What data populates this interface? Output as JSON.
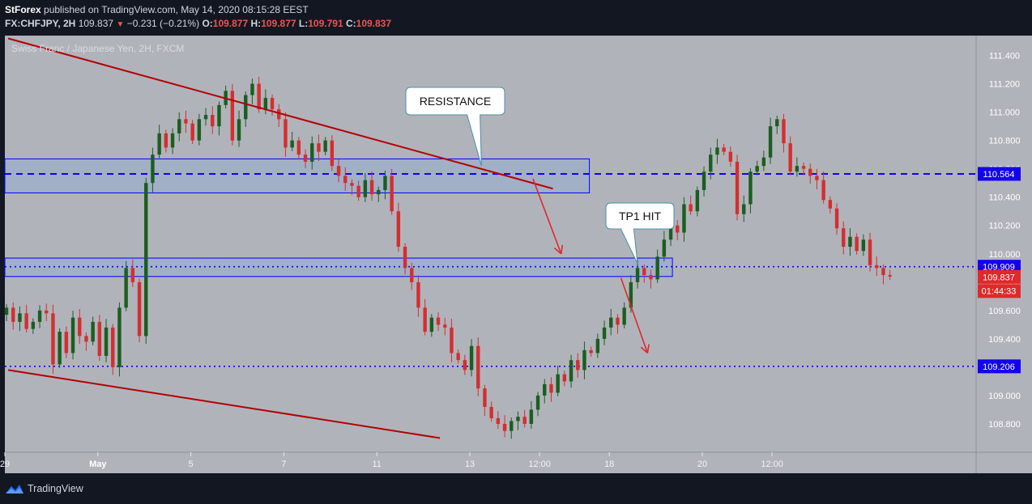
{
  "header": {
    "publisher": "StForex",
    "published_text": "published on TradingView.com, May 14, 2020 08:15:28 EEST",
    "symbol": "FX:CHFJPY, 2H",
    "last": "109.837",
    "change": "−0.231 (−0.21%)",
    "o_label": "O:",
    "o_value": "109.877",
    "h_label": "H:",
    "h_value": "109.877",
    "l_label": "L:",
    "l_value": "109.791",
    "c_label": "C:",
    "c_value": "109.837"
  },
  "footer": {
    "brand": "TradingView"
  },
  "chart_data": {
    "type": "candlestick",
    "title": "Swiss Franc / Japanese Yen, 2H, FXCM",
    "y_range": [
      108.6,
      111.54
    ],
    "y_ticks": [
      "111.400",
      "111.200",
      "111.000",
      "110.800",
      "110.600",
      "110.400",
      "110.200",
      "110.000",
      "109.800",
      "109.600",
      "109.400",
      "109.200",
      "109.000",
      "108.800"
    ],
    "x_range": [
      0,
      288
    ],
    "x_ticks": [
      {
        "x": 0,
        "label": "29"
      },
      {
        "x": 28,
        "label": "May"
      },
      {
        "x": 56,
        "label": "5"
      },
      {
        "x": 84,
        "label": "7"
      },
      {
        "x": 112,
        "label": "11"
      },
      {
        "x": 140,
        "label": "13"
      },
      {
        "x": 161,
        "label": "12:00"
      },
      {
        "x": 182,
        "label": "18"
      },
      {
        "x": 210,
        "label": "20"
      },
      {
        "x": 231,
        "label": "12:00"
      }
    ],
    "closes": [
      109.62,
      109.52,
      109.58,
      109.47,
      109.52,
      109.6,
      109.58,
      109.22,
      109.45,
      109.3,
      109.55,
      109.42,
      109.38,
      109.52,
      109.28,
      109.48,
      109.2,
      109.62,
      109.9,
      109.8,
      109.42,
      110.5,
      110.7,
      110.85,
      110.75,
      110.85,
      110.95,
      110.92,
      110.8,
      110.95,
      110.98,
      110.9,
      111.05,
      111.15,
      110.8,
      110.95,
      111.12,
      111.2,
      111.02,
      111.1,
      111.02,
      110.95,
      110.75,
      110.8,
      110.7,
      110.65,
      110.78,
      110.72,
      110.8,
      110.62,
      110.55,
      110.5,
      110.48,
      110.4,
      110.52,
      110.42,
      110.45,
      110.55,
      110.3,
      110.05,
      109.9,
      109.8,
      109.62,
      109.45,
      109.55,
      109.5,
      109.48,
      109.3,
      109.25,
      109.18,
      109.35,
      109.05,
      108.92,
      108.84,
      108.8,
      108.75,
      108.82,
      108.85,
      108.8,
      108.9,
      109.0,
      109.08,
      109.02,
      109.15,
      109.1,
      109.25,
      109.18,
      109.32,
      109.3,
      109.4,
      109.48,
      109.55,
      109.5,
      109.62,
      109.8,
      109.9,
      109.85,
      109.82,
      109.98,
      110.1,
      110.2,
      110.15,
      110.35,
      110.3,
      110.45,
      110.58,
      110.7,
      110.75,
      110.72,
      110.65,
      110.28,
      110.35,
      110.58,
      110.62,
      110.68,
      110.9,
      110.95,
      110.78,
      110.58,
      110.62,
      110.6,
      110.55,
      110.52,
      110.38,
      110.32,
      110.18,
      110.05,
      110.12,
      110.02,
      110.1,
      109.92,
      109.9,
      109.85,
      109.84
    ],
    "levels": [
      {
        "price": 110.564,
        "label": "110.564",
        "style": "dashed",
        "color": "#1200ee"
      },
      {
        "price": 109.909,
        "label": "109.909",
        "style": "dotted",
        "color": "#1200ee"
      },
      {
        "price": 109.206,
        "label": "109.206",
        "style": "dotted",
        "color": "#1200ee"
      }
    ],
    "last_price": {
      "price": 109.837,
      "label": "109.837",
      "countdown": "01:44:33",
      "color": "#e0292a"
    },
    "annotations": [
      {
        "type": "callout",
        "text": "RESISTANCE"
      },
      {
        "type": "callout",
        "text": "TP1 HIT"
      }
    ],
    "colors": {
      "up": "#1b5e20",
      "down": "#d32f2f",
      "background": "#b1b3bb",
      "trendline": "#b40000",
      "zone_fill": "#7fa4e4",
      "zone_stroke": "#0000ff",
      "level": "#1200ee",
      "panel": "#131722"
    }
  }
}
